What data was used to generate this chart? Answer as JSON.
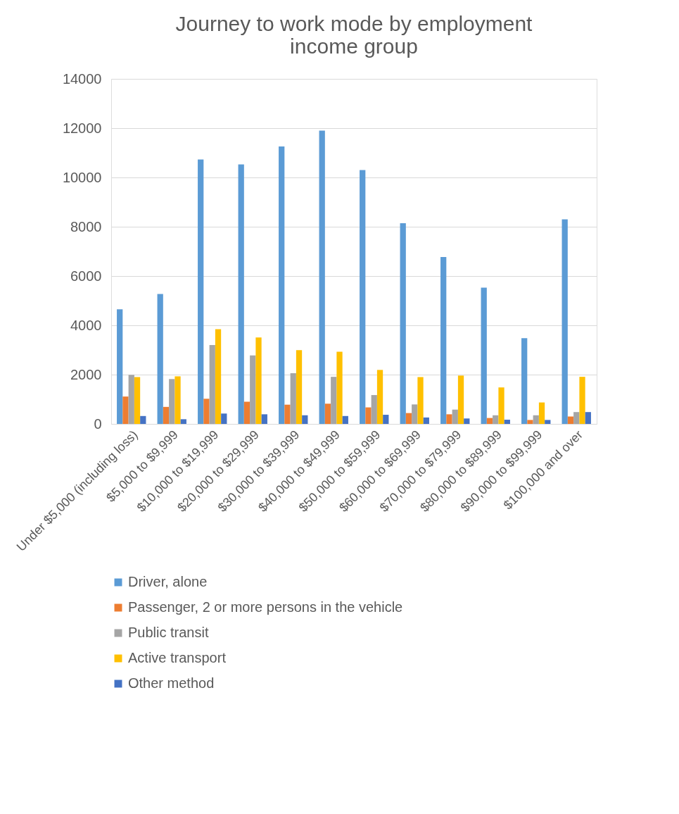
{
  "chart_data": {
    "type": "bar",
    "title": [
      "Journey to work mode by employment",
      "income group"
    ],
    "categories": [
      "Under $5,000 (including loss)",
      "$5,000 to $9,999",
      "$10,000 to $19,999",
      "$20,000 to $29,999",
      "$30,000 to $39,999",
      "$40,000 to $49,999",
      "$50,000 to $59,999",
      "$60,000 to $69,999",
      "$70,000 to $79,999",
      "$80,000 to $89,999",
      "$90,000 to $99,999",
      "$100,000 and over"
    ],
    "series": [
      {
        "name": "Driver, alone",
        "color": "#5b9bd5",
        "values": [
          4650,
          5270,
          10730,
          10530,
          11260,
          11900,
          10300,
          8140,
          6770,
          5530,
          3480,
          8300
        ]
      },
      {
        "name": "Passenger, 2 or more persons in the vehicle",
        "color": "#ed7d31",
        "values": [
          1110,
          690,
          1020,
          900,
          780,
          820,
          670,
          440,
          390,
          240,
          160,
          300
        ]
      },
      {
        "name": "Public transit",
        "color": "#a5a5a5",
        "values": [
          1990,
          1820,
          3200,
          2780,
          2060,
          1910,
          1170,
          790,
          580,
          350,
          350,
          480
        ]
      },
      {
        "name": "Active transport",
        "color": "#ffc000",
        "values": [
          1900,
          1930,
          3840,
          3510,
          2990,
          2930,
          2190,
          1900,
          1960,
          1480,
          870,
          1910
        ]
      },
      {
        "name": "Other method",
        "color": "#4472c4",
        "values": [
          320,
          190,
          420,
          390,
          350,
          320,
          370,
          260,
          220,
          170,
          160,
          480
        ]
      }
    ],
    "ylim": [
      0,
      14000
    ],
    "yticks": [
      0,
      2000,
      4000,
      6000,
      8000,
      10000,
      12000,
      14000
    ],
    "grid": "y",
    "legend": "bottom"
  }
}
